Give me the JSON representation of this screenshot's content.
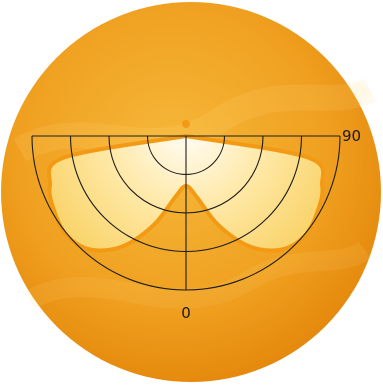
{
  "chart_data": {
    "type": "polar",
    "subtype": "luminous-intensity-distribution",
    "angle_labels": [
      "90",
      "0"
    ],
    "angle_range_deg": [
      0,
      90
    ],
    "radial_rings": 4,
    "grid": true,
    "series": [
      {
        "angles_deg": [
          0,
          10,
          20,
          30,
          40,
          50,
          60,
          70,
          80,
          90
        ],
        "values": [
          0.29,
          0.36,
          0.55,
          0.74,
          0.86,
          0.9,
          0.88,
          0.84,
          0.72,
          0.0
        ],
        "color": "#ffe9a8"
      }
    ]
  },
  "colors": {
    "background_disc": "#f0a020",
    "background_disc_light": "#f6b83a",
    "background_disc_dark": "#e4880c",
    "curve_edge": "#f39a14",
    "curve_fill_center": "#fffdf8",
    "curve_fill_outer": "#f8cf5c",
    "grid_line": "#1e1e1e"
  }
}
